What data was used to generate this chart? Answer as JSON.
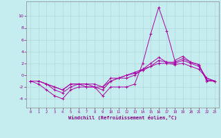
{
  "xlabel": "Windchill (Refroidissement éolien,°C)",
  "background_color": "#c5ecee",
  "grid_color": "#b0d8da",
  "line_color": "#aa00aa",
  "xlim": [
    -0.5,
    23.5
  ],
  "ylim": [
    -5.5,
    12.5
  ],
  "yticks": [
    -4,
    -2,
    0,
    2,
    4,
    6,
    8,
    10
  ],
  "xticks": [
    0,
    1,
    2,
    3,
    4,
    5,
    6,
    7,
    8,
    9,
    10,
    11,
    12,
    13,
    14,
    15,
    16,
    17,
    18,
    19,
    20,
    21,
    22,
    23
  ],
  "series": [
    [
      -1,
      -1.5,
      -2.5,
      -3.5,
      -4,
      -2.5,
      -2,
      -2,
      -2,
      -3.5,
      -2,
      -2,
      -2,
      -1.5,
      2,
      7,
      11.5,
      7.5,
      2.5,
      3.2,
      2.2,
      1.8,
      -1,
      -1
    ],
    [
      -1,
      -1,
      -1.5,
      -2.5,
      -3,
      -2,
      -1.5,
      -1.5,
      -2,
      -2.5,
      -1,
      -0.5,
      -0.5,
      0,
      1,
      2,
      3,
      2.2,
      2.2,
      2.8,
      2.2,
      1.8,
      -0.8,
      -1
    ],
    [
      -1,
      -1,
      -1.5,
      -2,
      -2.5,
      -1.5,
      -1.5,
      -1.5,
      -1.5,
      -2,
      -0.5,
      -0.5,
      0,
      0.3,
      0.8,
      1.5,
      2.5,
      2.2,
      2.0,
      2.5,
      2.0,
      1.5,
      -0.5,
      -1
    ],
    [
      -1,
      -1,
      -1.5,
      -2,
      -2.5,
      -1.5,
      -1.5,
      -2,
      -2,
      -2,
      -1,
      -0.5,
      0,
      0.5,
      1,
      1.5,
      2,
      2,
      1.8,
      2,
      1.5,
      1,
      -0.5,
      -1
    ]
  ]
}
